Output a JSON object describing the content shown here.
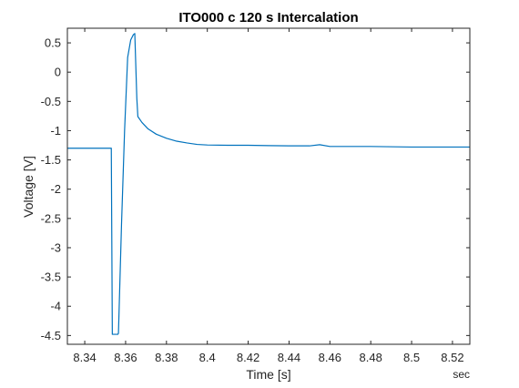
{
  "chart_data": {
    "type": "line",
    "title": "ITO000 c 120 s Intercalation",
    "xlabel": "Time [s]",
    "ylabel": "Voltage [V]",
    "x_unit_note": "sec",
    "xlim": [
      8.3315,
      8.5285
    ],
    "ylim": [
      -4.65,
      0.75
    ],
    "xticks": [
      8.34,
      8.36,
      8.38,
      8.4,
      8.42,
      8.44,
      8.46,
      8.48,
      8.5,
      8.52
    ],
    "xtick_labels": [
      "8.34",
      "8.36",
      "8.38",
      "8.4",
      "8.42",
      "8.44",
      "8.46",
      "8.48",
      "8.5",
      "8.52"
    ],
    "yticks": [
      0.5,
      0,
      -0.5,
      -1,
      -1.5,
      -2,
      -2.5,
      -3,
      -3.5,
      -4,
      -4.5
    ],
    "ytick_labels": [
      "0.5",
      "0",
      "-0.5",
      "-1",
      "-1.5",
      "-2",
      "-2.5",
      "-3",
      "-3.5",
      "-4",
      "-4.5"
    ],
    "grid": false,
    "line_color": "#0072BD",
    "series": [
      {
        "x": [
          8.3315,
          8.345,
          8.353,
          8.3535,
          8.3562,
          8.3565,
          8.358,
          8.3595,
          8.361,
          8.3625,
          8.3638,
          8.3645,
          8.3655,
          8.366,
          8.368,
          8.371,
          8.375,
          8.38,
          8.385,
          8.39,
          8.395,
          8.4,
          8.41,
          8.42,
          8.43,
          8.44,
          8.45,
          8.455,
          8.46,
          8.48,
          8.5,
          8.52,
          8.5285
        ],
        "y": [
          -1.3,
          -1.3,
          -1.3,
          -4.48,
          -4.48,
          -4.46,
          -2.6,
          -1.0,
          0.25,
          0.55,
          0.64,
          0.66,
          -0.45,
          -0.76,
          -0.86,
          -0.97,
          -1.06,
          -1.13,
          -1.18,
          -1.21,
          -1.235,
          -1.245,
          -1.25,
          -1.25,
          -1.255,
          -1.26,
          -1.26,
          -1.24,
          -1.27,
          -1.27,
          -1.28,
          -1.28,
          -1.28
        ]
      }
    ]
  }
}
